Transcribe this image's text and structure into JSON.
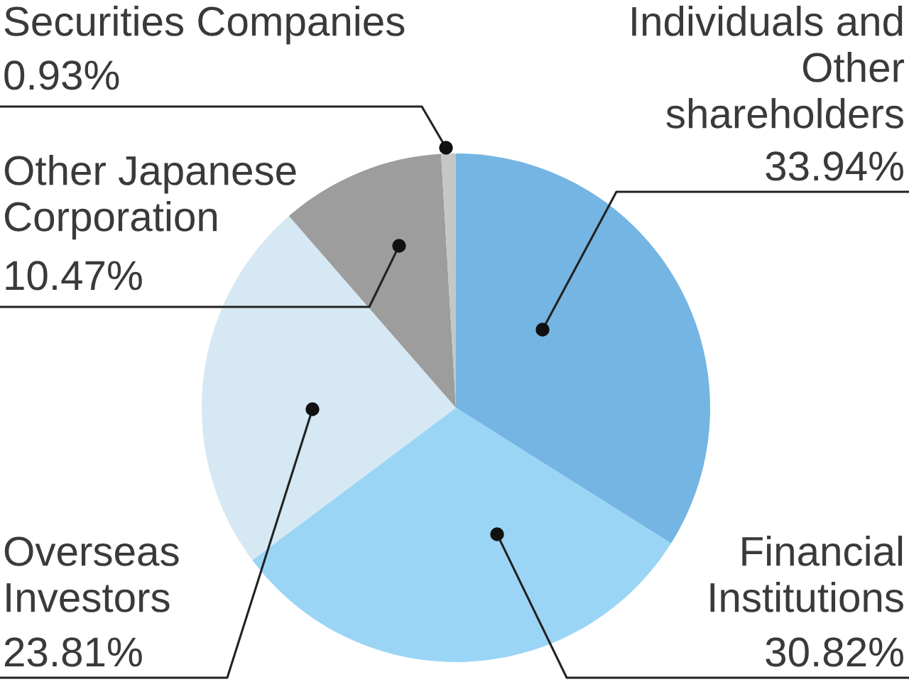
{
  "chart_data": {
    "type": "pie",
    "categories": [
      "Individuals and\nOther\nshareholders",
      "Financial\nInstitutions",
      "Overseas\nInvestors",
      "Other Japanese\nCorporation",
      "Securities Companies"
    ],
    "values": [
      33.94,
      30.82,
      23.81,
      10.47,
      0.93
    ],
    "colors": [
      "#74b5e3",
      "#9bd5f6",
      "#d5e8f3",
      "#9d9d9d",
      "#c6c6c6"
    ],
    "value_labels": [
      "33.94%",
      "30.82%",
      "23.81%",
      "10.47%",
      "0.93%"
    ]
  }
}
